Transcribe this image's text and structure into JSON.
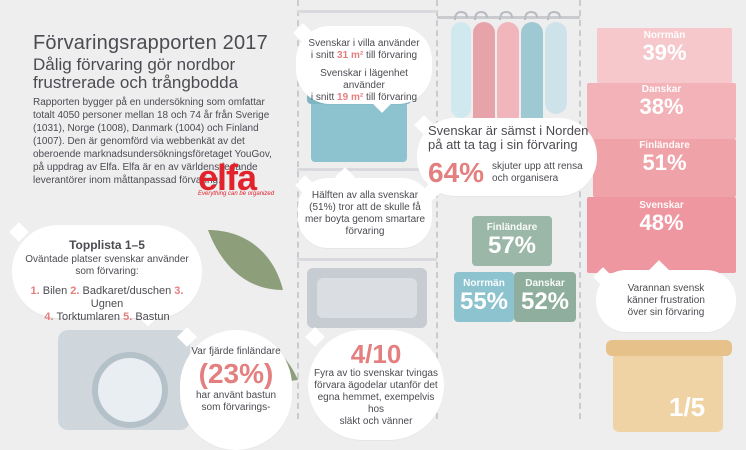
{
  "header": {
    "title": "Förvaringsrapporten 2017",
    "subtitle_line1": "Dålig förvaring gör nordbor",
    "subtitle_line2": "frustrerade och trångbodda"
  },
  "intro": {
    "text": "Rapporten bygger på en undersökning som omfattar totalt 4050 personer mellan 18 och 74 år från Sverige (1031), Norge (1008), Danmark (1004) och Finland (1007). Den är genomförd via webbenkät av det oberoende marknadsundersökningsföretaget YouGov, på uppdrag av Elfa. Elfa är en av världens ledande leverantörer inom måttanpassad förvaring."
  },
  "brand": {
    "name": "elfa",
    "tagline": "Everything can be organized"
  },
  "topplista": {
    "title": "Topplista 1–5",
    "intro": "Oväntade platser svenskar använder som förvaring:",
    "items": [
      {
        "n": "1.",
        "label": "Bilen"
      },
      {
        "n": "2.",
        "label": "Badkaret/duschen"
      },
      {
        "n": "3.",
        "label": "Ugnen"
      },
      {
        "n": "4.",
        "label": "Torktumlaren"
      },
      {
        "n": "5.",
        "label": "Bastun"
      }
    ]
  },
  "finnish_sauna": {
    "lead": "Var fjärde finländare",
    "value": "(23%)",
    "tail_line1": "har använt bastun",
    "tail_line2": "som förvarings-"
  },
  "villa_lagenhet": {
    "villa_line1": "Svenskar i villa använder",
    "villa_prefix": "i snitt ",
    "villa_value": "31 m²",
    "villa_suffix": " till förvaring",
    "lgh_line1": "Svenskar i lägenhet använder",
    "lgh_prefix": "i snitt ",
    "lgh_value": "19 m²",
    "lgh_suffix": " till förvaring"
  },
  "halften": {
    "text": "Hälften av alla svenskar (51%) tror att de skulle få mer boyta genom smartare förvaring"
  },
  "samst": {
    "title_line1": "Svenskar är sämst i Norden",
    "title_line2": "på att ta tag i sin förvaring",
    "value": "64%",
    "text": "skjuter upp att rensa och organisera"
  },
  "boxes": {
    "finlandare": {
      "name": "Finländare",
      "value": "57%"
    },
    "norrman": {
      "name": "Norrmän",
      "value": "55%"
    },
    "danskar": {
      "name": "Danskar",
      "value": "52%"
    }
  },
  "tvingas": {
    "value": "4/10",
    "text_line1": "Fyra av tio svenskar tvingas",
    "text_line2": "förvara ägodelar utanför det",
    "text_line3": "egna hemmet, exempelvis hos",
    "text_line4": "släkt och vänner"
  },
  "stack": [
    {
      "name": "Norrmän",
      "value": "39%"
    },
    {
      "name": "Danskar",
      "value": "38%"
    },
    {
      "name": "Finländare",
      "value": "51%"
    },
    {
      "name": "Svenskar",
      "value": "48%"
    }
  ],
  "frustration": {
    "line1": "Varannan svensk",
    "line2": "känner frustration",
    "line3": "över sin förvaring"
  },
  "bottom_right": {
    "value": "1/5"
  },
  "icons": {
    "leaf": "leaf-icon",
    "hanger": "hanger-icon",
    "washer": "washing-machine-icon",
    "bin": "storage-bin-icon"
  },
  "colors": {
    "accent": "#e47f80",
    "teal": "#8cc3cf",
    "sage": "#9bb7a8",
    "pink": "#f0a2a9"
  }
}
